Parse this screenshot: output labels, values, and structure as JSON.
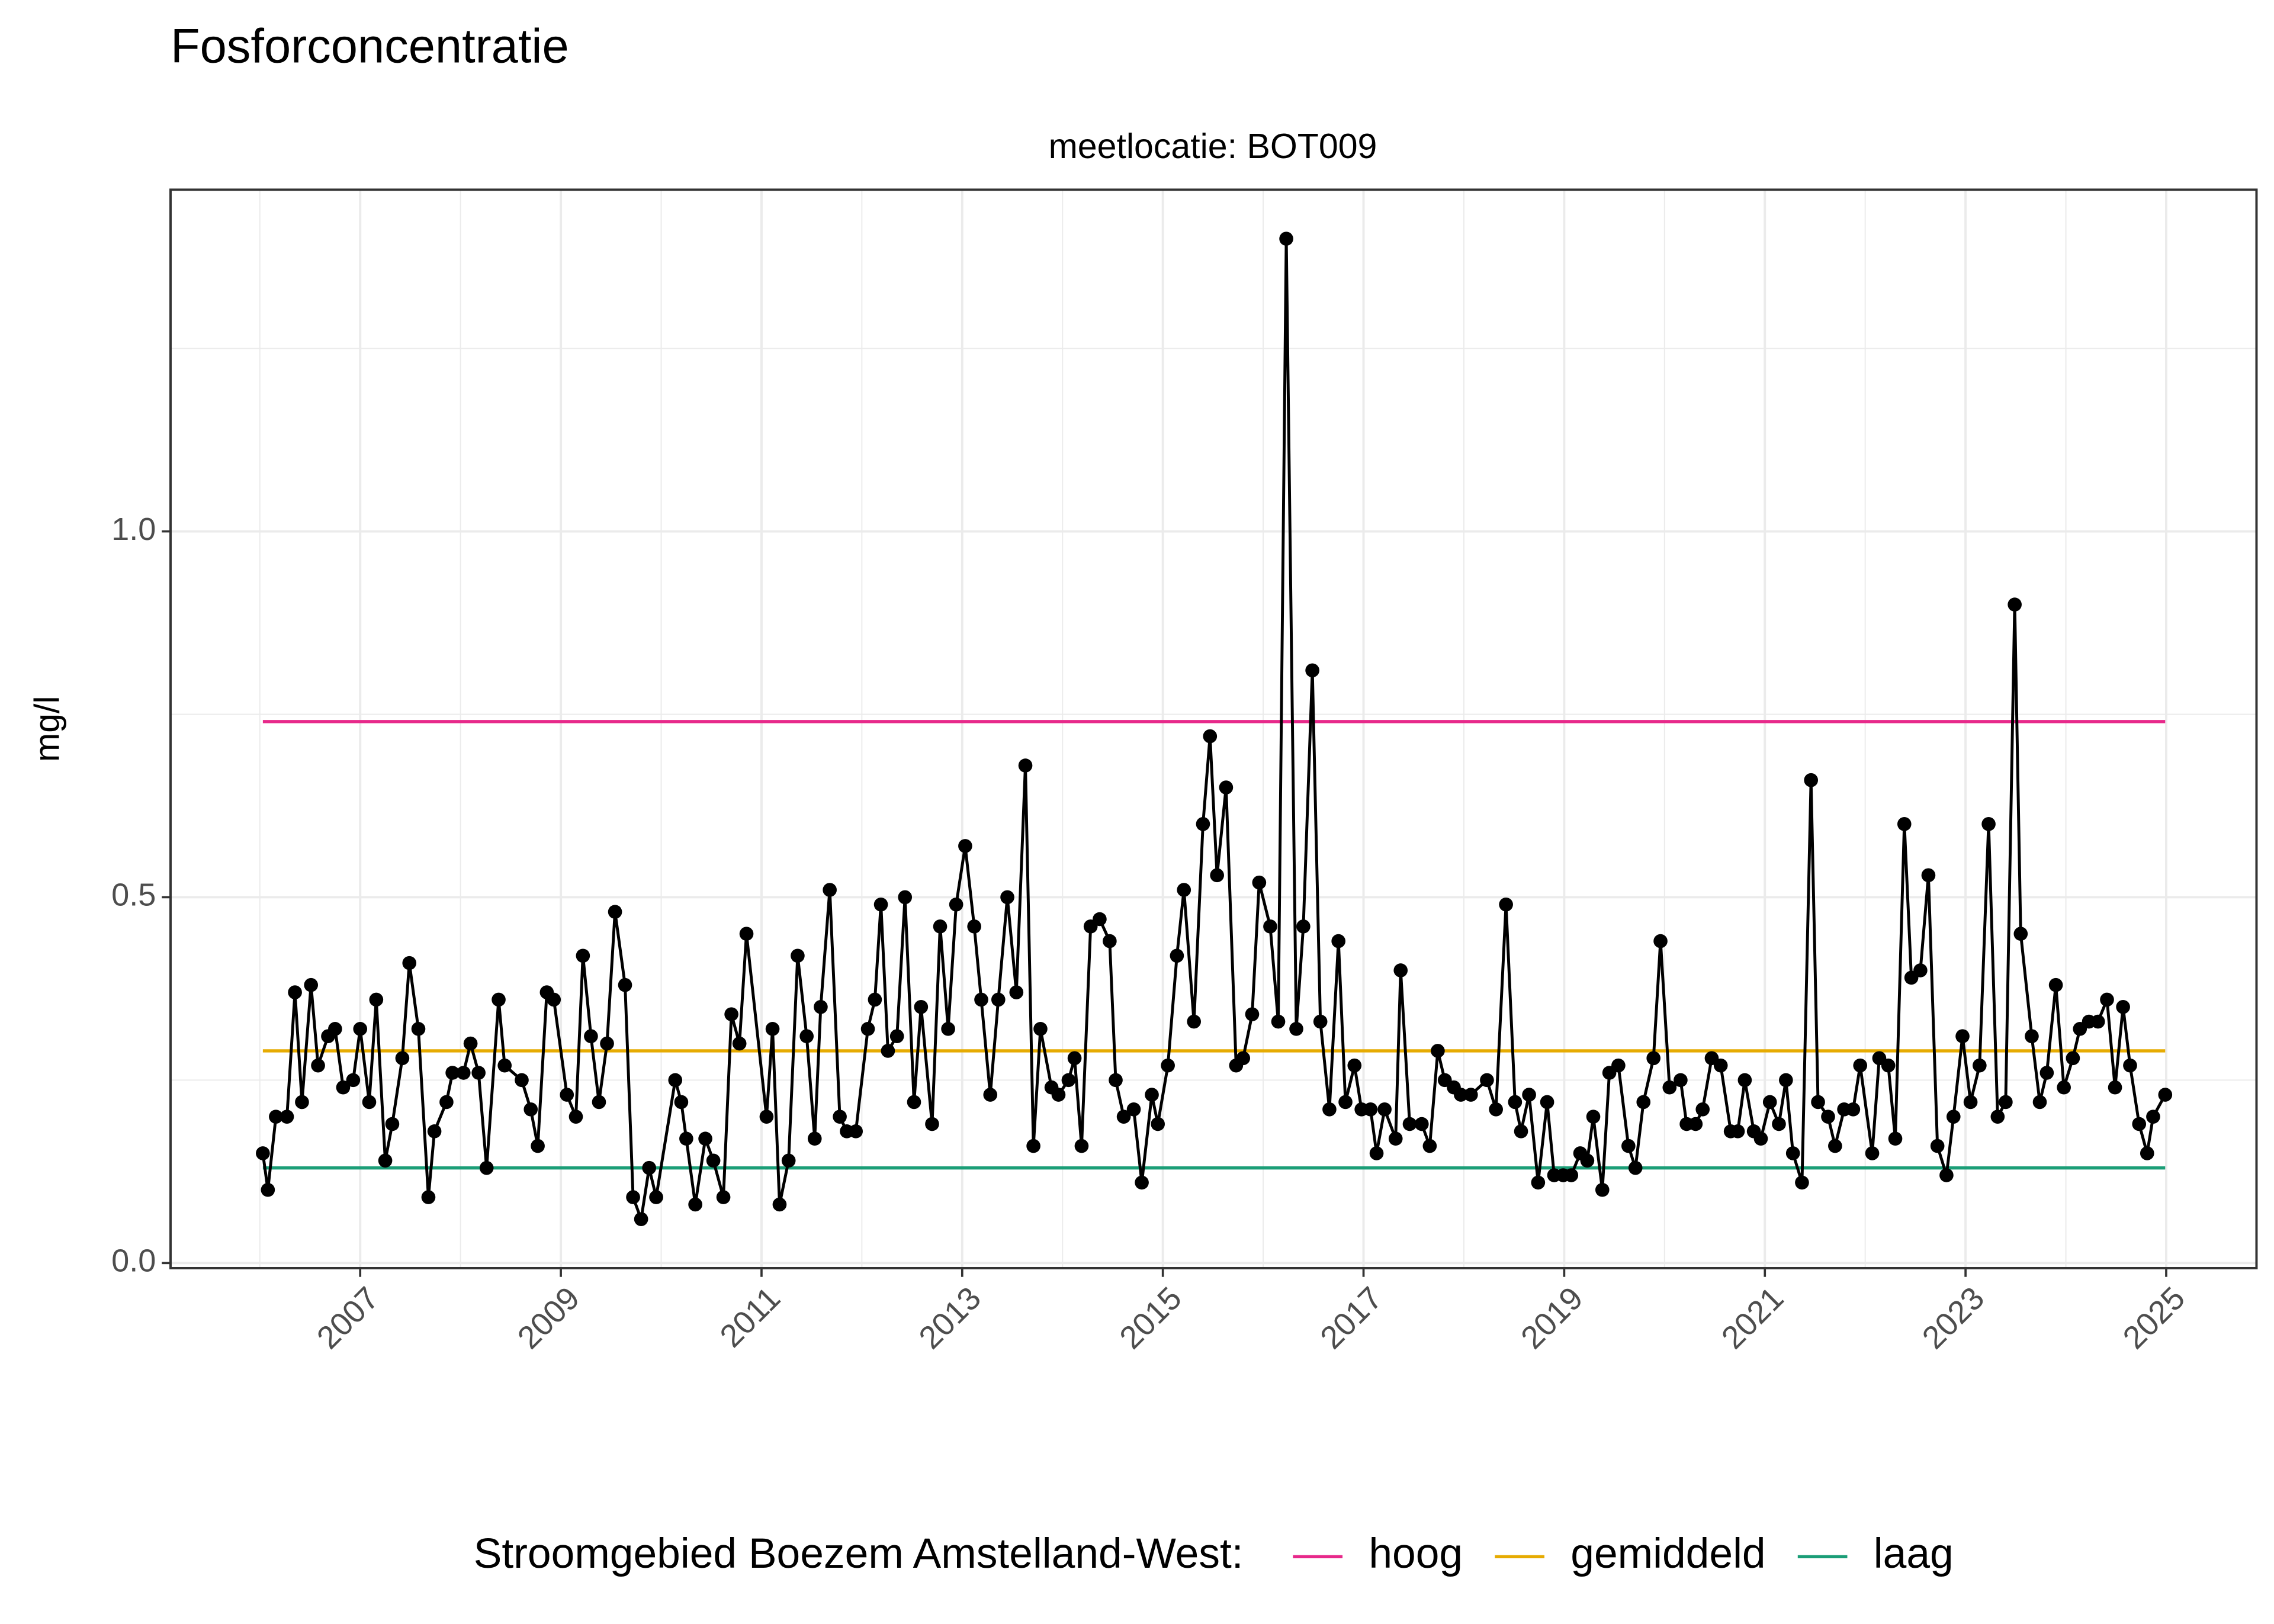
{
  "chart_data": {
    "type": "line",
    "title": "Fosforconcentratie",
    "subtitle": "meetlocatie: BOT009",
    "ylabel": "mg/l",
    "color": "#000000",
    "x": [
      2006.03,
      2006.08,
      2006.16,
      2006.27,
      2006.35,
      2006.42,
      2006.51,
      2006.58,
      2006.68,
      2006.75,
      2006.83,
      2006.93,
      2007.0,
      2007.09,
      2007.16,
      2007.25,
      2007.32,
      2007.42,
      2007.49,
      2007.58,
      2007.68,
      2007.74,
      2007.86,
      2007.92,
      2008.03,
      2008.1,
      2008.18,
      2008.26,
      2008.38,
      2008.44,
      2008.61,
      2008.7,
      2008.77,
      2008.86,
      2008.93,
      2009.06,
      2009.15,
      2009.22,
      2009.3,
      2009.38,
      2009.46,
      2009.54,
      2009.64,
      2009.72,
      2009.8,
      2009.88,
      2009.95,
      2010.14,
      2010.2,
      2010.25,
      2010.34,
      2010.44,
      2010.52,
      2010.62,
      2010.7,
      2010.78,
      2010.85,
      2011.05,
      2011.11,
      2011.18,
      2011.27,
      2011.36,
      2011.45,
      2011.53,
      2011.59,
      2011.68,
      2011.78,
      2011.85,
      2011.94,
      2012.06,
      2012.13,
      2012.19,
      2012.26,
      2012.35,
      2012.43,
      2012.52,
      2012.59,
      2012.7,
      2012.78,
      2012.86,
      2012.94,
      2013.03,
      2013.12,
      2013.19,
      2013.28,
      2013.36,
      2013.45,
      2013.54,
      2013.63,
      2013.71,
      2013.78,
      2013.89,
      2013.96,
      2014.06,
      2014.12,
      2014.19,
      2014.28,
      2014.37,
      2014.47,
      2014.53,
      2014.61,
      2014.71,
      2014.79,
      2014.89,
      2014.95,
      2015.05,
      2015.14,
      2015.21,
      2015.31,
      2015.4,
      2015.47,
      2015.54,
      2015.63,
      2015.73,
      2015.8,
      2015.89,
      2015.96,
      2016.07,
      2016.15,
      2016.23,
      2016.33,
      2016.4,
      2016.49,
      2016.57,
      2016.66,
      2016.75,
      2016.82,
      2016.91,
      2016.98,
      2017.07,
      2017.13,
      2017.21,
      2017.32,
      2017.37,
      2017.46,
      2017.58,
      2017.66,
      2017.74,
      2017.81,
      2017.9,
      2017.97,
      2018.07,
      2018.23,
      2018.32,
      2018.42,
      2018.51,
      2018.57,
      2018.65,
      2018.74,
      2018.83,
      2018.9,
      2018.99,
      2019.07,
      2019.16,
      2019.23,
      2019.29,
      2019.38,
      2019.45,
      2019.54,
      2019.64,
      2019.71,
      2019.79,
      2019.89,
      2019.96,
      2020.05,
      2020.16,
      2020.22,
      2020.31,
      2020.38,
      2020.47,
      2020.56,
      2020.66,
      2020.73,
      2020.8,
      2020.89,
      2020.96,
      2021.05,
      2021.14,
      2021.21,
      2021.28,
      2021.37,
      2021.46,
      2021.53,
      2021.63,
      2021.7,
      2021.79,
      2021.88,
      2021.95,
      2022.07,
      2022.14,
      2022.23,
      2022.3,
      2022.39,
      2022.46,
      2022.55,
      2022.63,
      2022.72,
      2022.81,
      2022.88,
      2022.97,
      2023.05,
      2023.14,
      2023.23,
      2023.32,
      2023.4,
      2023.49,
      2023.55,
      2023.66,
      2023.74,
      2023.81,
      2023.9,
      2023.98,
      2024.07,
      2024.14,
      2024.23,
      2024.32,
      2024.41,
      2024.49,
      2024.57,
      2024.64,
      2024.73,
      2024.81,
      2024.87,
      2024.99
    ],
    "values": [
      0.15,
      0.1,
      0.2,
      0.2,
      0.37,
      0.22,
      0.38,
      0.27,
      0.31,
      0.32,
      0.24,
      0.25,
      0.32,
      0.22,
      0.36,
      0.14,
      0.19,
      0.28,
      0.41,
      0.32,
      0.09,
      0.18,
      0.22,
      0.26,
      0.26,
      0.3,
      0.26,
      0.13,
      0.36,
      0.27,
      0.25,
      0.21,
      0.16,
      0.37,
      0.36,
      0.23,
      0.2,
      0.42,
      0.31,
      0.22,
      0.3,
      0.48,
      0.38,
      0.09,
      0.06,
      0.13,
      0.09,
      0.25,
      0.22,
      0.17,
      0.08,
      0.17,
      0.14,
      0.09,
      0.34,
      0.3,
      0.45,
      0.2,
      0.32,
      0.08,
      0.14,
      0.42,
      0.31,
      0.17,
      0.35,
      0.51,
      0.2,
      0.18,
      0.18,
      0.32,
      0.36,
      0.49,
      0.29,
      0.31,
      0.5,
      0.22,
      0.35,
      0.19,
      0.46,
      0.32,
      0.49,
      0.57,
      0.46,
      0.36,
      0.23,
      0.36,
      0.5,
      0.37,
      0.68,
      0.16,
      0.32,
      0.24,
      0.23,
      0.25,
      0.28,
      0.16,
      0.46,
      0.47,
      0.44,
      0.25,
      0.2,
      0.21,
      0.11,
      0.23,
      0.19,
      0.27,
      0.42,
      0.51,
      0.33,
      0.6,
      0.72,
      0.53,
      0.65,
      0.27,
      0.28,
      0.34,
      0.52,
      0.46,
      0.33,
      1.4,
      0.32,
      0.46,
      0.81,
      0.33,
      0.21,
      0.44,
      0.22,
      0.27,
      0.21,
      0.21,
      0.15,
      0.21,
      0.17,
      0.4,
      0.19,
      0.19,
      0.16,
      0.29,
      0.25,
      0.24,
      0.23,
      0.23,
      0.25,
      0.21,
      0.49,
      0.22,
      0.18,
      0.23,
      0.11,
      0.22,
      0.12,
      0.12,
      0.12,
      0.15,
      0.14,
      0.2,
      0.1,
      0.26,
      0.27,
      0.16,
      0.13,
      0.22,
      0.28,
      0.44,
      0.24,
      0.25,
      0.19,
      0.19,
      0.21,
      0.28,
      0.27,
      0.18,
      0.18,
      0.25,
      0.18,
      0.17,
      0.22,
      0.19,
      0.25,
      0.15,
      0.11,
      0.66,
      0.22,
      0.2,
      0.16,
      0.21,
      0.21,
      0.27,
      0.15,
      0.28,
      0.27,
      0.17,
      0.6,
      0.39,
      0.4,
      0.53,
      0.16,
      0.12,
      0.2,
      0.31,
      0.22,
      0.27,
      0.6,
      0.2,
      0.22,
      0.9,
      0.45,
      0.31,
      0.22,
      0.26,
      0.38,
      0.24,
      0.28,
      0.32,
      0.33,
      0.33,
      0.36,
      0.24,
      0.35,
      0.27,
      0.19,
      0.15,
      0.2,
      0.23
    ],
    "reference_lines": [
      {
        "name": "hoog",
        "color": "#e7298a",
        "value": 0.74
      },
      {
        "name": "gemiddeld",
        "color": "#e6ab02",
        "value": 0.29
      },
      {
        "name": "laag",
        "color": "#1b9e77",
        "value": 0.13
      }
    ],
    "legend_title": "Stroomgebied Boezem Amstelland-West:",
    "legend": "bottom",
    "grid": true,
    "xlim": [
      2005.11,
      2025.9
    ],
    "xticks": [
      2007,
      2009,
      2011,
      2013,
      2015,
      2017,
      2019,
      2021,
      2023,
      2025
    ],
    "x_minor_ticks": [
      2006,
      2008,
      2010,
      2012,
      2014,
      2016,
      2018,
      2020,
      2022,
      2024
    ],
    "ylim": [
      -0.007,
      1.467
    ],
    "yticks": [
      {
        "value": 0,
        "label": "0.0"
      },
      {
        "value": 0.5,
        "label": "0.5"
      },
      {
        "value": 1,
        "label": "1.0"
      }
    ],
    "y_minor_ticks": [
      0.25,
      0.75,
      1.25
    ]
  }
}
